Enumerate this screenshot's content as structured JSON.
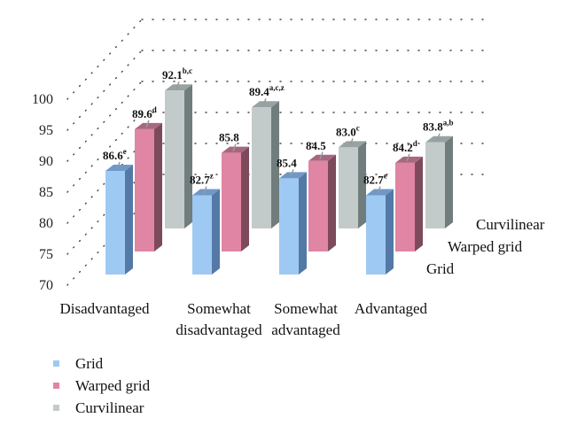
{
  "chart_data": {
    "type": "bar",
    "style": "3d-grouped",
    "title": "",
    "xlabel": "",
    "ylabel": "",
    "ylim": [
      70,
      100
    ],
    "yticks": [
      "70",
      "75",
      "80",
      "85",
      "90",
      "95",
      "100"
    ],
    "grid": true,
    "categories": [
      {
        "line1": "Disadvantaged",
        "line2": ""
      },
      {
        "line1": "Somewhat",
        "line2": "disadvantaged"
      },
      {
        "line1": "Somewhat",
        "line2": "advantaged"
      },
      {
        "line1": "Advantaged",
        "line2": ""
      }
    ],
    "series": [
      {
        "name": "Grid",
        "color": "#9ec9f2",
        "side": "#5479a6",
        "top": "#6f98c8",
        "values": [
          86.6,
          82.7,
          85.4,
          82.7
        ],
        "labels": [
          {
            "v": "86.6",
            "s": "e"
          },
          {
            "v": "82.7",
            "s": "z"
          },
          {
            "v": "85.4",
            "s": ""
          },
          {
            "v": "82.7",
            "s": "e"
          }
        ]
      },
      {
        "name": "Warped grid",
        "color": "#e085a3",
        "side": "#7d4a5c",
        "top": "#a86780",
        "values": [
          89.6,
          85.8,
          84.5,
          84.2
        ],
        "labels": [
          {
            "v": "89.6",
            "s": "d"
          },
          {
            "v": "85.8",
            "s": ""
          },
          {
            "v": "84.5",
            "s": ""
          },
          {
            "v": "84.2",
            "s": "d"
          }
        ]
      },
      {
        "name": "Curvilinear",
        "color": "#c3cbca",
        "side": "#717d7d",
        "top": "#97a3a2",
        "values": [
          92.1,
          89.4,
          83.0,
          83.8
        ],
        "labels": [
          {
            "v": "92.1",
            "s": "b,c"
          },
          {
            "v": "89.4",
            "s": "a,c,z"
          },
          {
            "v": "83.0",
            "s": "c"
          },
          {
            "v": "83.8",
            "s": "a,b"
          }
        ]
      }
    ],
    "legend_position": "bottom-left"
  }
}
